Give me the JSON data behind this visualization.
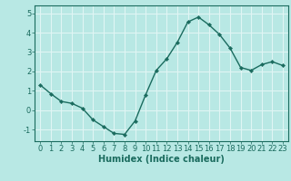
{
  "x": [
    0,
    1,
    2,
    3,
    4,
    5,
    6,
    7,
    8,
    9,
    10,
    11,
    12,
    13,
    14,
    15,
    16,
    17,
    18,
    19,
    20,
    21,
    22,
    23
  ],
  "y": [
    1.3,
    0.85,
    0.45,
    0.35,
    0.1,
    -0.5,
    -0.85,
    -1.2,
    -1.25,
    -0.55,
    0.8,
    2.05,
    2.65,
    3.5,
    4.55,
    4.8,
    4.4,
    3.9,
    3.2,
    2.2,
    2.05,
    2.35,
    2.5,
    2.3
  ],
  "line_color": "#1a6b5e",
  "marker": "D",
  "marker_size": 2.2,
  "bg_color": "#b8e8e4",
  "grid_color": "#e0f5f4",
  "xlabel": "Humidex (Indice chaleur)",
  "xlim": [
    -0.5,
    23.5
  ],
  "ylim": [
    -1.6,
    5.4
  ],
  "yticks": [
    -1,
    0,
    1,
    2,
    3,
    4,
    5
  ],
  "xticks": [
    0,
    1,
    2,
    3,
    4,
    5,
    6,
    7,
    8,
    9,
    10,
    11,
    12,
    13,
    14,
    15,
    16,
    17,
    18,
    19,
    20,
    21,
    22,
    23
  ],
  "tick_color": "#1a6b5e",
  "axis_color": "#1a6b5e",
  "label_fontsize": 7,
  "tick_fontsize": 6
}
